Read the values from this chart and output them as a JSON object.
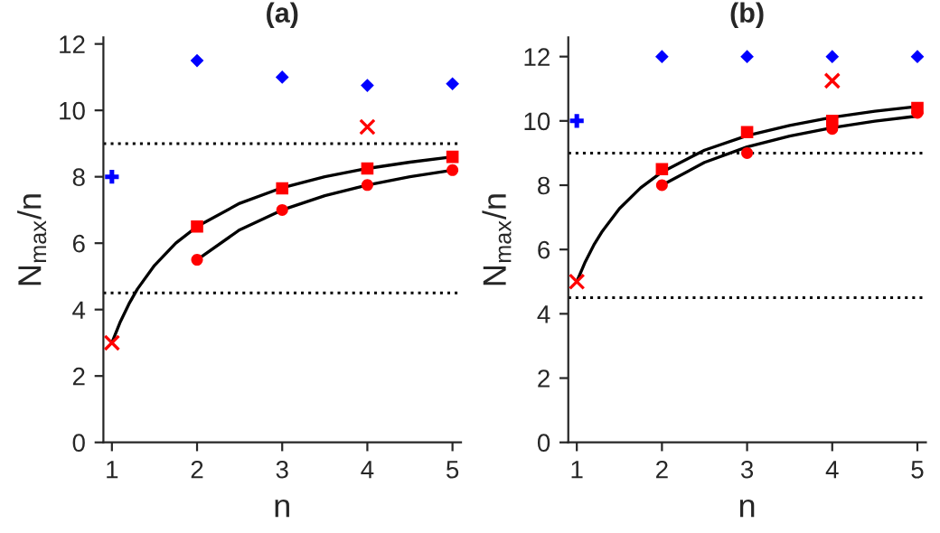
{
  "chart_data": [
    {
      "type": "scatter",
      "title": "(a)",
      "xlabel": "n",
      "ylabel": "N$_{max}$/n",
      "xlim": [
        0.9,
        5.1
      ],
      "ylim": [
        0,
        12.2
      ],
      "xticks": [
        1,
        2,
        3,
        4,
        5
      ],
      "yticks": [
        0,
        2,
        4,
        6,
        8,
        10,
        12
      ],
      "grid": false,
      "legend": false,
      "ref_lines": [
        {
          "axis": "y",
          "value": 9,
          "line_style": "dotted",
          "color": "#000000"
        },
        {
          "axis": "y",
          "value": 4.5,
          "line_style": "dotted",
          "color": "#000000"
        }
      ],
      "series": [
        {
          "type": "line",
          "color": "#000000",
          "marker": "none",
          "line_style": "solid",
          "x": [
            1,
            1.1,
            1.2,
            1.3,
            1.5,
            1.75,
            2,
            2.5,
            3,
            3.5,
            4,
            4.5,
            5
          ],
          "values": [
            3,
            3.64,
            4.17,
            4.62,
            5.33,
            6.0,
            6.5,
            7.2,
            7.67,
            8.0,
            8.25,
            8.44,
            8.6
          ]
        },
        {
          "type": "line",
          "color": "#000000",
          "marker": "none",
          "line_style": "solid",
          "x": [
            2,
            2.5,
            3,
            3.5,
            4,
            4.5,
            5
          ],
          "values": [
            5.5,
            6.4,
            7.0,
            7.43,
            7.75,
            8.0,
            8.2
          ]
        },
        {
          "color": "#0000ff",
          "marker": "diamond",
          "x": [
            2,
            3,
            4,
            5
          ],
          "values": [
            11.5,
            11.0,
            10.75,
            10.8
          ]
        },
        {
          "color": "#0000ff",
          "marker": "plus",
          "x": [
            1
          ],
          "values": [
            8
          ]
        },
        {
          "color": "#ff0000",
          "marker": "cross",
          "x": [
            1,
            4
          ],
          "values": [
            3,
            9.5
          ]
        },
        {
          "color": "#ff0000",
          "marker": "square",
          "x": [
            2,
            3,
            4,
            5
          ],
          "values": [
            6.5,
            7.65,
            8.25,
            8.6
          ]
        },
        {
          "color": "#ff0000",
          "marker": "circle",
          "x": [
            2,
            3,
            4,
            5
          ],
          "values": [
            5.5,
            7.0,
            7.75,
            8.2
          ]
        }
      ]
    },
    {
      "type": "scatter",
      "title": "(b)",
      "xlabel": "n",
      "ylabel": "N$_{max}$/n",
      "xlim": [
        0.9,
        5.1
      ],
      "ylim": [
        0,
        12.6
      ],
      "xticks": [
        1,
        2,
        3,
        4,
        5
      ],
      "yticks": [
        0,
        2,
        4,
        6,
        8,
        10,
        12
      ],
      "grid": false,
      "legend": false,
      "ref_lines": [
        {
          "axis": "y",
          "value": 9,
          "line_style": "dotted",
          "color": "#000000"
        },
        {
          "axis": "y",
          "value": 4.5,
          "line_style": "dotted",
          "color": "#000000"
        }
      ],
      "series": [
        {
          "type": "line",
          "color": "#000000",
          "marker": "none",
          "line_style": "solid",
          "x": [
            1,
            1.1,
            1.2,
            1.3,
            1.5,
            1.75,
            2,
            2.5,
            3,
            3.5,
            4,
            4.5,
            5
          ],
          "values": [
            5.0,
            5.62,
            6.14,
            6.57,
            7.27,
            7.92,
            8.41,
            9.09,
            9.54,
            9.86,
            10.11,
            10.3,
            10.45
          ]
        },
        {
          "type": "line",
          "color": "#000000",
          "marker": "none",
          "line_style": "solid",
          "x": [
            2,
            2.5,
            3,
            3.5,
            4,
            4.5,
            5
          ],
          "values": [
            8.0,
            8.71,
            9.19,
            9.53,
            9.79,
            9.99,
            10.15
          ]
        },
        {
          "color": "#0000ff",
          "marker": "diamond",
          "x": [
            2,
            3,
            4,
            5
          ],
          "values": [
            12,
            12,
            12,
            12
          ]
        },
        {
          "color": "#0000ff",
          "marker": "plus",
          "x": [
            1
          ],
          "values": [
            10
          ]
        },
        {
          "color": "#ff0000",
          "marker": "cross",
          "x": [
            1,
            4
          ],
          "values": [
            5,
            11.25
          ]
        },
        {
          "color": "#ff0000",
          "marker": "square",
          "x": [
            2,
            3,
            4,
            5
          ],
          "values": [
            8.5,
            9.65,
            10.0,
            10.4
          ]
        },
        {
          "color": "#ff0000",
          "marker": "circle",
          "x": [
            2,
            3,
            4,
            5
          ],
          "values": [
            8.0,
            9.0,
            9.75,
            10.25
          ]
        }
      ]
    }
  ]
}
